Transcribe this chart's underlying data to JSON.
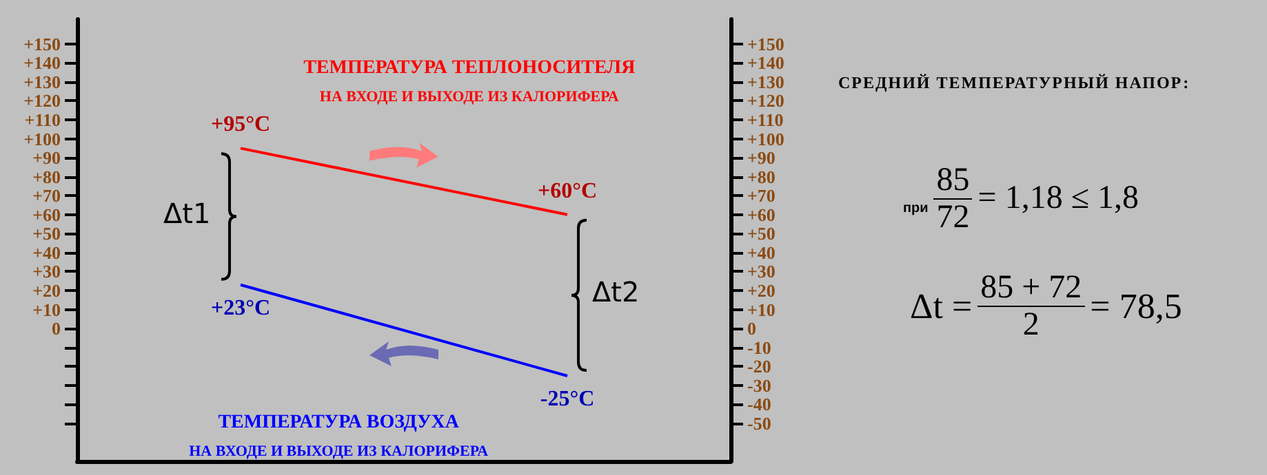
{
  "chart_data": {
    "type": "line",
    "categories": [
      null,
      null
    ],
    "series": [
      {
        "name": "ТЕМПЕРАТУРА ТЕПЛОНОСИТЕЛЯ\nНА ВХОДЕ И ВЫХОДЕ ИЗ КАЛОРИФЕРА",
        "color": "#ff0000",
        "values": [
          95,
          60
        ],
        "value_labels": [
          "+95°C",
          "+60°C"
        ]
      },
      {
        "name": "ТЕМПЕРАТУРА ВОЗДУХА\nНА ВХОДЕ И ВЫХОДЕ ИЗ КАЛОРИФЕРА",
        "color": "#0000ff",
        "values": [
          23,
          -25
        ],
        "value_labels": [
          "+23°C",
          "-25°C"
        ]
      }
    ],
    "ylim": [
      -70,
      163
    ],
    "yticks": [
      {
        "value": -50,
        "label": null
      },
      {
        "value": -40,
        "label": null
      },
      {
        "value": -30,
        "label": null
      },
      {
        "value": -20,
        "label": null
      },
      {
        "value": -10,
        "label": null
      },
      0,
      {
        "value": 10,
        "label": "+10"
      },
      {
        "value": 20,
        "label": "+20"
      },
      {
        "value": 30,
        "label": "+30"
      },
      {
        "value": 40,
        "label": "+40"
      },
      {
        "value": 50,
        "label": "+50"
      },
      {
        "value": 60,
        "label": "+60"
      },
      {
        "value": 70,
        "label": "+70"
      },
      {
        "value": 80,
        "label": "+80"
      },
      {
        "value": 90,
        "label": "+90"
      },
      {
        "value": 100,
        "label": "+100"
      },
      {
        "value": 110,
        "label": "+110"
      },
      {
        "value": 120,
        "label": "+120"
      },
      {
        "value": 130,
        "label": "+130"
      },
      {
        "value": 140,
        "label": "+140"
      },
      {
        "value": 150,
        "label": "+150"
      }
    ],
    "y2lim": [
      -70,
      163
    ],
    "y2ticks": [
      -50,
      -40,
      -30,
      -20,
      -10,
      0,
      {
        "value": 10,
        "label": "+10"
      },
      {
        "value": 20,
        "label": "+20"
      },
      {
        "value": 30,
        "label": "+30"
      },
      {
        "value": 40,
        "label": "+40"
      },
      {
        "value": 50,
        "label": "+50"
      },
      {
        "value": 60,
        "label": "+60"
      },
      {
        "value": 70,
        "label": "+70"
      },
      {
        "value": 80,
        "label": "+80"
      },
      {
        "value": 90,
        "label": "+90"
      },
      {
        "value": 100,
        "label": "+100"
      },
      {
        "value": 110,
        "label": "+110"
      },
      {
        "value": 120,
        "label": "+120"
      },
      {
        "value": 130,
        "label": "+130"
      },
      {
        "value": 140,
        "label": "+140"
      },
      {
        "value": 150,
        "label": "+150"
      }
    ],
    "tick_labels": "y",
    "grid": false,
    "marker": "none",
    "annotations": [
      "Δt1",
      "Δt2",
      "СРЕДНИЙ ТЕМПЕРАТУРНЫЙ НАПОР:",
      "при",
      "85",
      "72",
      "= 1,18 ≤ 1,8",
      "Δt =",
      "85 + 72",
      "2",
      "= 78,5"
    ]
  }
}
